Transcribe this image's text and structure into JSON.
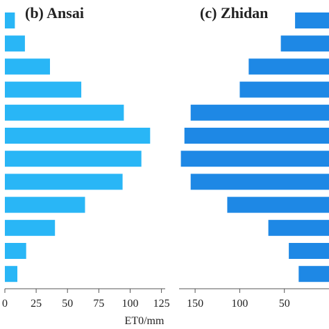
{
  "chart_data": [
    {
      "type": "bar",
      "orientation": "horizontal",
      "title": "(b) Ansai",
      "categories_count": 12,
      "values": [
        8,
        16,
        36,
        61,
        95,
        116,
        109,
        94,
        64,
        40,
        17,
        10
      ],
      "color": "#29b6f6",
      "xlim": [
        0,
        128
      ],
      "xticks": [
        0,
        25,
        50,
        75,
        100,
        125
      ],
      "xlabel": "ET0/mm"
    },
    {
      "type": "bar",
      "orientation": "horizontal",
      "direction": "reversed",
      "title": "(c) Zhidan",
      "categories_count": 12,
      "values": [
        38,
        54,
        90,
        100,
        155,
        162,
        166,
        155,
        114,
        68,
        45,
        34
      ],
      "color": "#1e88e5",
      "xlim": [
        168,
        0
      ],
      "xticks": [
        150,
        100,
        50
      ],
      "xlabel": ""
    }
  ]
}
